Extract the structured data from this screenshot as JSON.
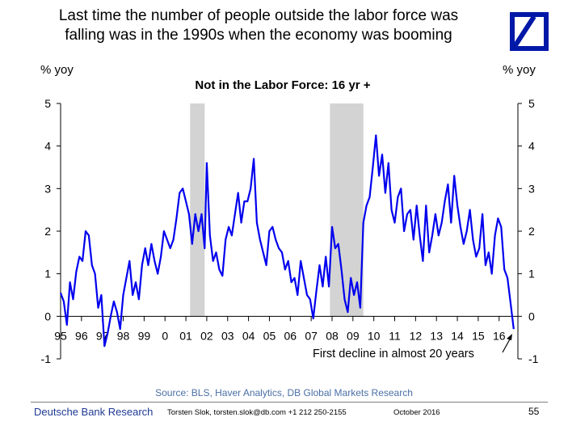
{
  "headline": {
    "line1": "Last time the number of people outside the labor force was",
    "line2": "falling was in the 1990s when the economy was booming"
  },
  "logo": {
    "name": "Deutsche Bank logo"
  },
  "units": {
    "left": "% yoy",
    "right": "% yoy"
  },
  "annotation": "First decline in almost 20 years",
  "source": "Source: BLS, Haver Analytics, DB Global Markets Research",
  "footer": {
    "bank": "Deutsche Bank Research",
    "contact": "Torsten Slok, torsten.slok@db.com  +1 212 250-2155",
    "date": "October 2016",
    "page": "55"
  },
  "colors": {
    "line": "#0000ee",
    "recession": "#d3d3d3",
    "brand": "#0018a8"
  },
  "chart_data": {
    "type": "line",
    "title": "Not in the Labor Force: 16 yr +",
    "ylabel_left": "% yoy",
    "ylabel_right": "% yoy",
    "ylim": [
      -1,
      5
    ],
    "yticks": [
      "-1",
      "0",
      "1",
      "2",
      "3",
      "4",
      "5"
    ],
    "xlim": [
      1995.0,
      2016.9
    ],
    "xticks": [
      "95",
      "96",
      "97",
      "98",
      "99",
      "0",
      "01",
      "02",
      "03",
      "04",
      "05",
      "06",
      "07",
      "08",
      "09",
      "10",
      "11",
      "12",
      "13",
      "14",
      "15",
      "16"
    ],
    "recessions": [
      [
        2001.2,
        2001.9
      ],
      [
        2007.9,
        2009.5
      ]
    ],
    "series": [
      {
        "x": [
          1995.0,
          1995.15,
          1995.3,
          1995.45,
          1995.6,
          1995.75,
          1995.9,
          1996.05,
          1996.2,
          1996.35,
          1996.5,
          1996.65,
          1996.8,
          1996.95,
          1997.1,
          1997.25,
          1997.4,
          1997.55,
          1997.7,
          1997.85,
          1998.0,
          1998.15,
          1998.3,
          1998.45,
          1998.6,
          1998.75,
          1998.9,
          1999.05,
          1999.2,
          1999.35,
          1999.5,
          1999.65,
          1999.8,
          1999.95,
          2000.1,
          2000.25,
          2000.4,
          2000.55,
          2000.7,
          2000.85,
          2001.0,
          2001.15,
          2001.3,
          2001.45,
          2001.6,
          2001.75,
          2001.9,
          2002.0,
          2002.15,
          2002.3,
          2002.45,
          2002.6,
          2002.75,
          2002.9,
          2003.05,
          2003.2,
          2003.35,
          2003.5,
          2003.65,
          2003.8,
          2003.95,
          2004.1,
          2004.25,
          2004.4,
          2004.55,
          2004.7,
          2004.85,
          2005.0,
          2005.15,
          2005.3,
          2005.45,
          2005.6,
          2005.75,
          2005.9,
          2006.05,
          2006.2,
          2006.35,
          2006.5,
          2006.65,
          2006.8,
          2006.95,
          2007.1,
          2007.25,
          2007.4,
          2007.55,
          2007.7,
          2007.85,
          2008.0,
          2008.15,
          2008.3,
          2008.45,
          2008.6,
          2008.75,
          2008.9,
          2009.05,
          2009.2,
          2009.35,
          2009.5,
          2009.65,
          2009.8,
          2009.95,
          2010.1,
          2010.25,
          2010.4,
          2010.55,
          2010.7,
          2010.85,
          2011.0,
          2011.15,
          2011.3,
          2011.45,
          2011.6,
          2011.75,
          2011.9,
          2012.05,
          2012.2,
          2012.35,
          2012.5,
          2012.65,
          2012.8,
          2012.95,
          2013.1,
          2013.25,
          2013.4,
          2013.55,
          2013.7,
          2013.85,
          2014.0,
          2014.15,
          2014.3,
          2014.45,
          2014.6,
          2014.75,
          2014.9,
          2015.05,
          2015.2,
          2015.35,
          2015.5,
          2015.65,
          2015.8,
          2015.95,
          2016.1,
          2016.25,
          2016.4,
          2016.55,
          2016.7
        ],
        "values": [
          0.55,
          0.35,
          -0.2,
          0.8,
          0.4,
          1.05,
          1.4,
          1.3,
          2.0,
          1.9,
          1.2,
          1.0,
          0.2,
          0.5,
          -0.7,
          -0.4,
          0.0,
          0.35,
          0.1,
          -0.3,
          0.5,
          0.9,
          1.3,
          0.5,
          0.8,
          0.4,
          1.2,
          1.6,
          1.2,
          1.7,
          1.3,
          1.0,
          1.4,
          2.0,
          1.8,
          1.6,
          1.8,
          2.3,
          2.9,
          3.0,
          2.7,
          2.4,
          1.7,
          2.4,
          2.0,
          2.4,
          1.6,
          3.6,
          1.9,
          1.3,
          1.5,
          1.1,
          0.95,
          1.8,
          2.1,
          1.9,
          2.4,
          2.9,
          2.2,
          2.7,
          2.7,
          3.0,
          3.7,
          2.2,
          1.8,
          1.5,
          1.2,
          2.0,
          2.1,
          1.8,
          1.6,
          1.5,
          1.1,
          1.3,
          0.8,
          0.9,
          0.5,
          1.3,
          0.9,
          0.5,
          0.4,
          -0.05,
          0.6,
          1.2,
          0.7,
          1.4,
          0.7,
          2.1,
          1.6,
          1.7,
          1.1,
          0.4,
          0.1,
          0.9,
          0.5,
          0.8,
          0.2,
          2.2,
          2.6,
          2.8,
          3.5,
          4.25,
          3.3,
          3.8,
          2.9,
          3.6,
          2.5,
          2.2,
          2.8,
          3.0,
          2.0,
          2.4,
          2.5,
          1.8,
          2.6,
          1.9,
          1.3,
          2.6,
          1.5,
          1.9,
          2.4,
          1.9,
          2.2,
          2.7,
          3.1,
          2.2,
          3.3,
          2.6,
          2.1,
          1.7,
          2.0,
          2.5,
          1.8,
          1.4,
          1.6,
          2.4,
          1.2,
          1.5,
          1.0,
          1.9,
          2.3,
          2.1,
          1.1,
          0.9,
          0.3,
          -0.3
        ]
      }
    ]
  }
}
